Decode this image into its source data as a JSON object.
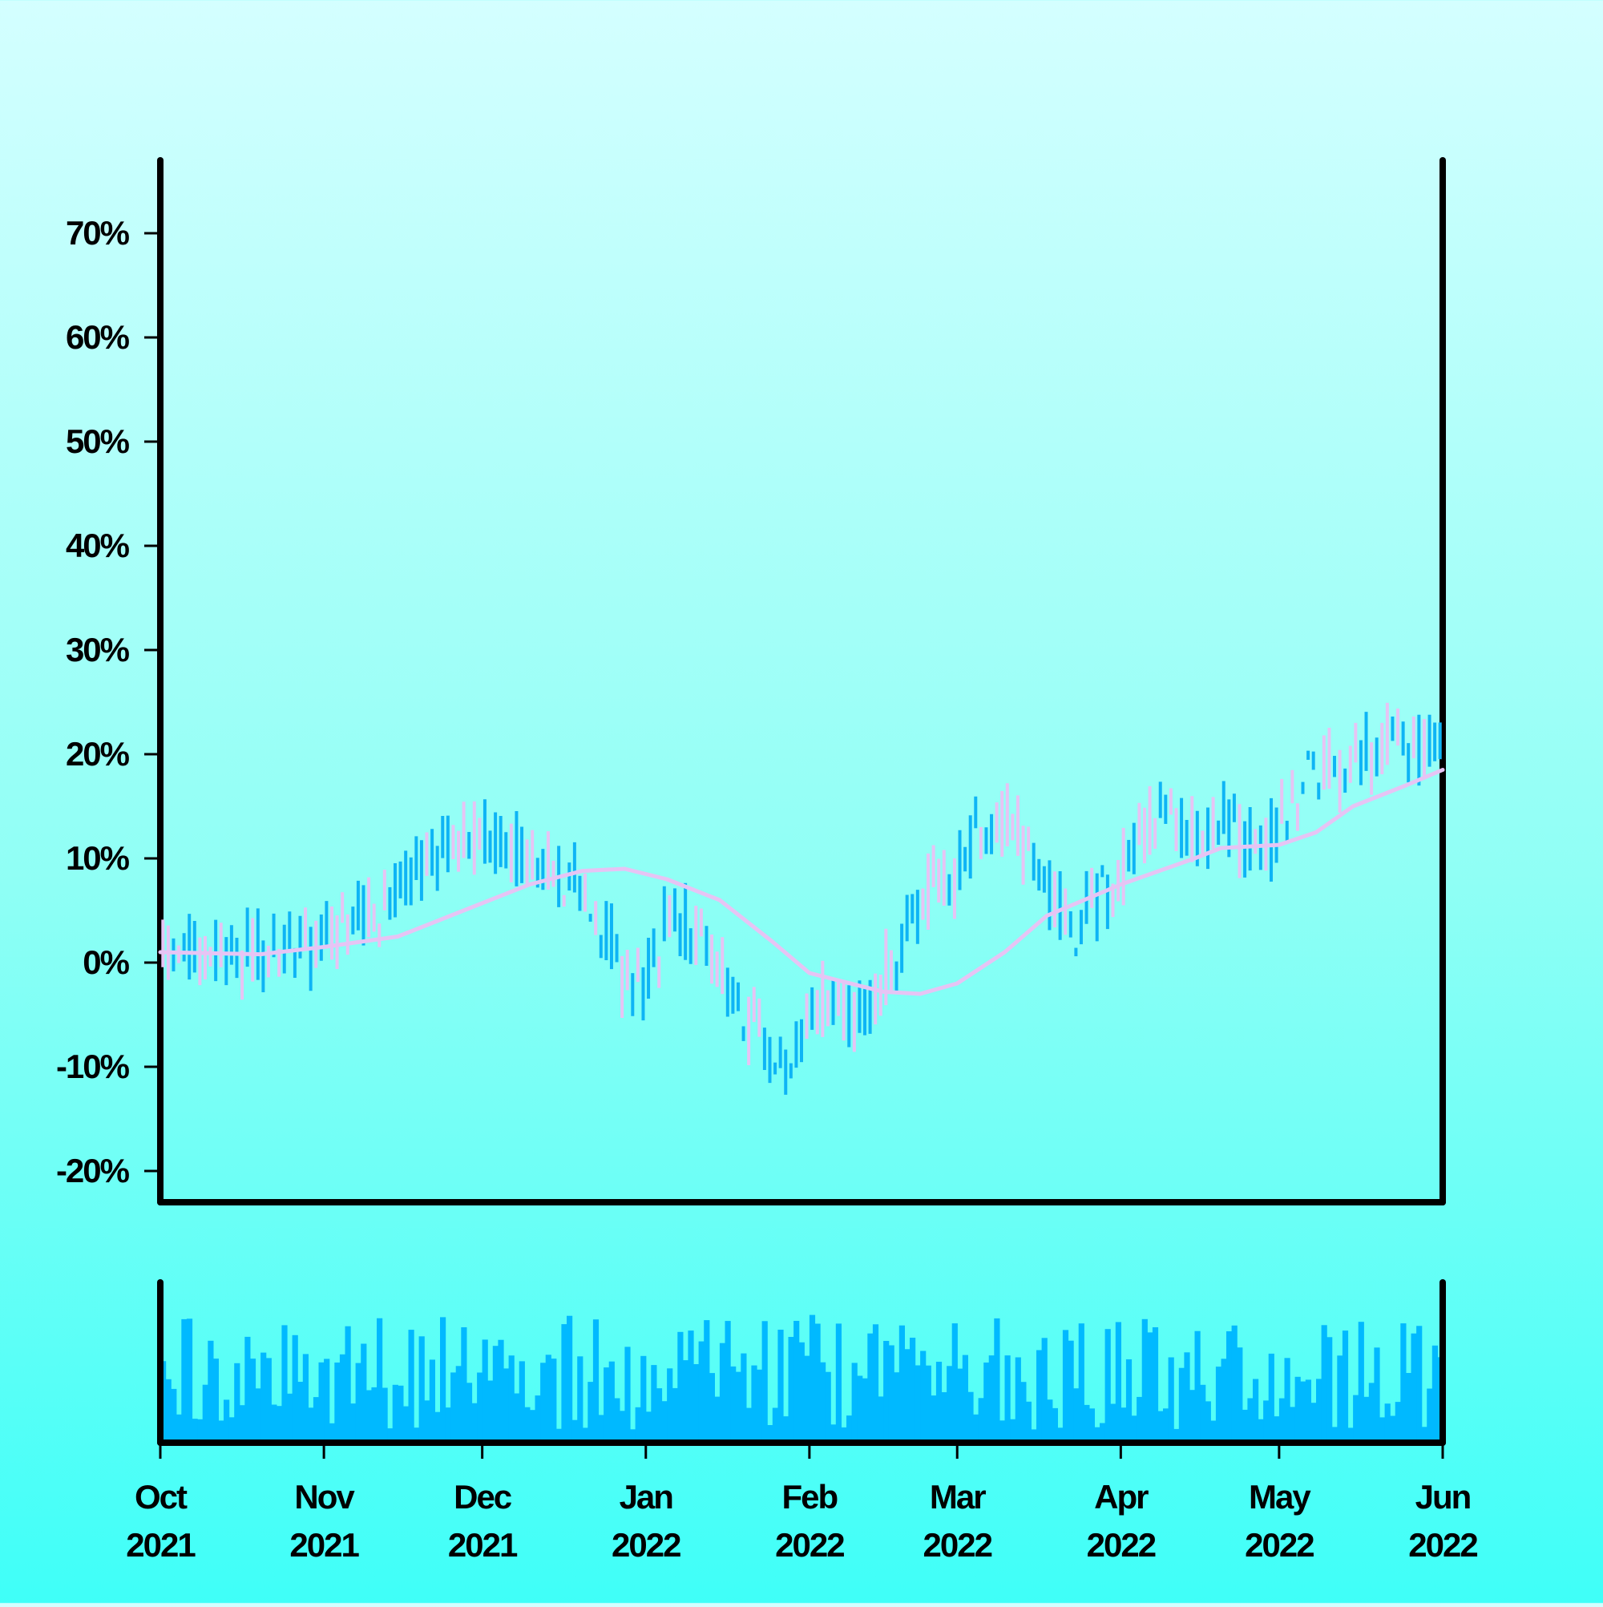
{
  "chart_data": {
    "type": "ohlc",
    "y_axis": {
      "ylim": [
        -23,
        77
      ],
      "tick_values": [
        -20,
        -10,
        0,
        10,
        20,
        30,
        40,
        50,
        60,
        70
      ],
      "tick_labels": [
        "-20%",
        "-10%",
        "0%",
        "10%",
        "20%",
        "30%",
        "40%",
        "50%",
        "60%",
        "70%"
      ]
    },
    "x_axis": {
      "range": [
        "2021-10-01",
        "2022-06-01"
      ],
      "ticks": [
        {
          "date": "2021-10-01",
          "month": "Oct",
          "year": "2021"
        },
        {
          "date": "2021-11-01",
          "month": "Nov",
          "year": "2021"
        },
        {
          "date": "2021-12-01",
          "month": "Dec",
          "year": "2021"
        },
        {
          "date": "2022-01-01",
          "month": "Jan",
          "year": "2022"
        },
        {
          "date": "2022-02-01",
          "month": "Feb",
          "year": "2022"
        },
        {
          "date": "2022-03-01",
          "month": "Mar",
          "year": "2022"
        },
        {
          "date": "2022-04-01",
          "month": "Apr",
          "year": "2022"
        },
        {
          "date": "2022-05-01",
          "month": "May",
          "year": "2022"
        },
        {
          "date": "2022-06-01",
          "month": "Jun",
          "year": "2022"
        }
      ]
    },
    "colors": {
      "up": "#0eb4f5",
      "down": "#e6c4f4",
      "moving_average": "#e6c4f4",
      "volume": "#00b9ff",
      "axis": "#000000"
    },
    "price_anchors": [
      {
        "date": "2021-10-01",
        "value": 0.5
      },
      {
        "date": "2021-10-20",
        "value": 0.5
      },
      {
        "date": "2021-11-05",
        "value": 2.5
      },
      {
        "date": "2021-11-20",
        "value": 10
      },
      {
        "date": "2021-11-28",
        "value": 12
      },
      {
        "date": "2021-12-08",
        "value": 11
      },
      {
        "date": "2021-12-22",
        "value": 6
      },
      {
        "date": "2021-12-29",
        "value": -3
      },
      {
        "date": "2022-01-05",
        "value": 3
      },
      {
        "date": "2022-01-12",
        "value": 3
      },
      {
        "date": "2022-01-20",
        "value": -6
      },
      {
        "date": "2022-01-28",
        "value": -11
      },
      {
        "date": "2022-02-03",
        "value": -4
      },
      {
        "date": "2022-02-12",
        "value": -5
      },
      {
        "date": "2022-02-20",
        "value": 4
      },
      {
        "date": "2022-03-01",
        "value": 9
      },
      {
        "date": "2022-03-08",
        "value": 14
      },
      {
        "date": "2022-03-16",
        "value": 9
      },
      {
        "date": "2022-03-24",
        "value": 3
      },
      {
        "date": "2022-04-01",
        "value": 9
      },
      {
        "date": "2022-04-08",
        "value": 14
      },
      {
        "date": "2022-04-20",
        "value": 13
      },
      {
        "date": "2022-04-28",
        "value": 11
      },
      {
        "date": "2022-05-08",
        "value": 19
      },
      {
        "date": "2022-05-15",
        "value": 18
      },
      {
        "date": "2022-05-22",
        "value": 22
      },
      {
        "date": "2022-06-01",
        "value": 20
      }
    ],
    "moving_average": [
      {
        "date": "2021-10-01",
        "value": 1.0
      },
      {
        "date": "2021-10-20",
        "value": 0.8
      },
      {
        "date": "2021-11-01",
        "value": 1.5
      },
      {
        "date": "2021-11-15",
        "value": 2.5
      },
      {
        "date": "2021-11-25",
        "value": 4.5
      },
      {
        "date": "2021-12-10",
        "value": 7.5
      },
      {
        "date": "2021-12-20",
        "value": 8.8
      },
      {
        "date": "2021-12-28",
        "value": 9.0
      },
      {
        "date": "2022-01-05",
        "value": 8.0
      },
      {
        "date": "2022-01-15",
        "value": 6.0
      },
      {
        "date": "2022-01-25",
        "value": 2.0
      },
      {
        "date": "2022-02-01",
        "value": -1.0
      },
      {
        "date": "2022-02-15",
        "value": -2.8
      },
      {
        "date": "2022-02-22",
        "value": -3.0
      },
      {
        "date": "2022-03-01",
        "value": -2.0
      },
      {
        "date": "2022-03-10",
        "value": 1.0
      },
      {
        "date": "2022-03-18",
        "value": 4.5
      },
      {
        "date": "2022-04-01",
        "value": 7.5
      },
      {
        "date": "2022-04-15",
        "value": 10.0
      },
      {
        "date": "2022-04-20",
        "value": 11.0
      },
      {
        "date": "2022-05-01",
        "value": 11.3
      },
      {
        "date": "2022-05-08",
        "value": 12.5
      },
      {
        "date": "2022-05-15",
        "value": 15.0
      },
      {
        "date": "2022-05-25",
        "value": 17.0
      },
      {
        "date": "2022-06-01",
        "value": 18.5
      }
    ],
    "volume_level": {
      "min": 0.1,
      "max": 1.0
    }
  }
}
